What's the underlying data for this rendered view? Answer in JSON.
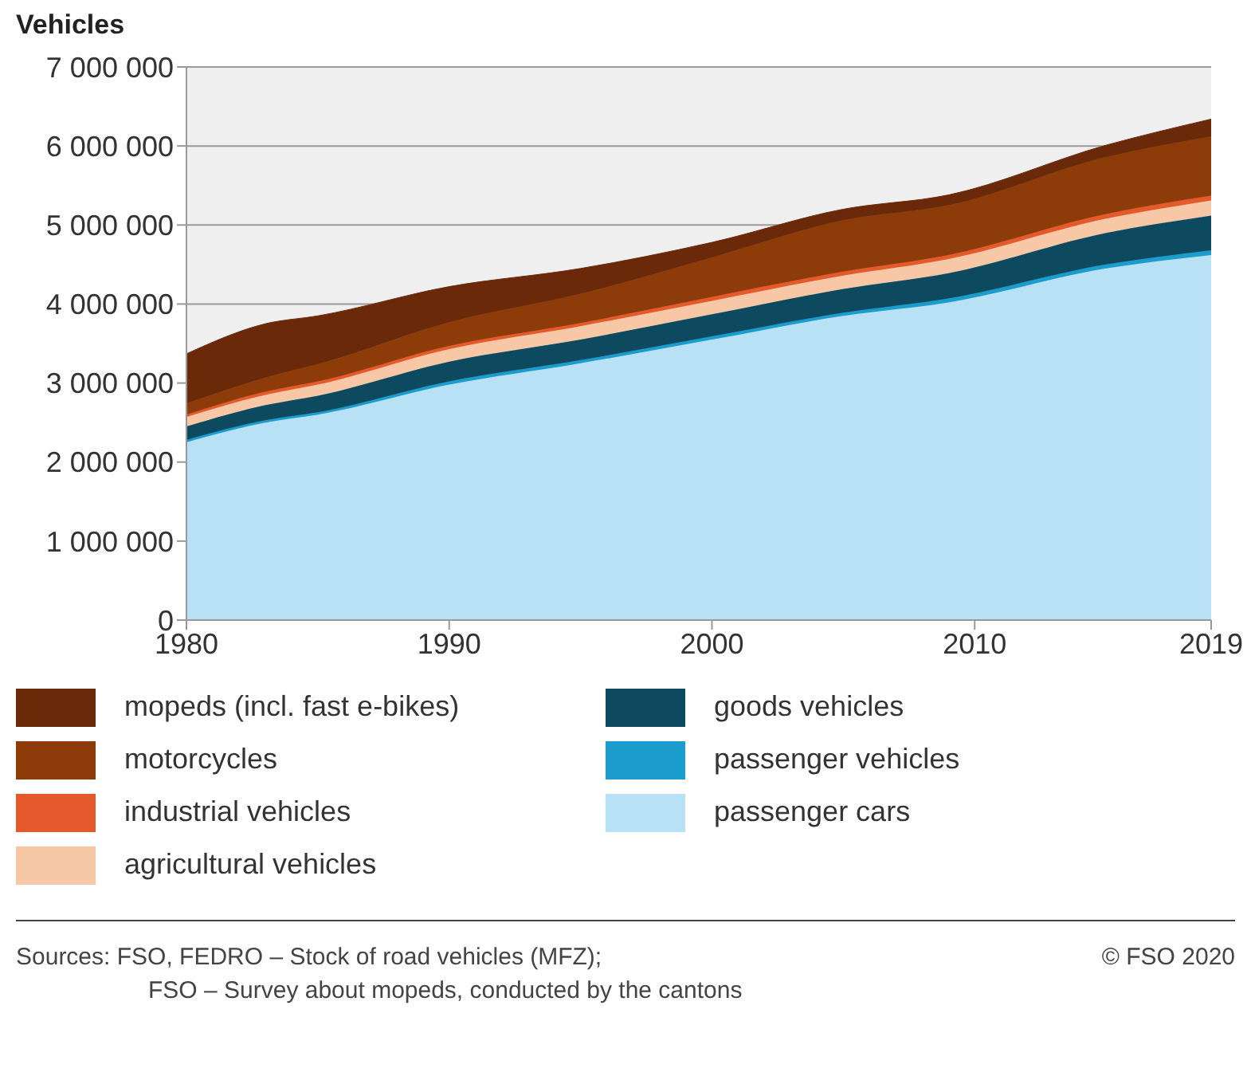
{
  "chart_data": {
    "type": "area",
    "stacked": true,
    "ylabel": "Vehicles",
    "x": [
      1980,
      1983,
      1985,
      1990,
      1995,
      2000,
      2005,
      2009,
      2015,
      2019
    ],
    "series": [
      {
        "name": "passenger cars",
        "color": "#b9e1f6",
        "values": [
          2250000,
          2500000,
          2600000,
          2980000,
          3250000,
          3550000,
          3850000,
          4020000,
          4450000,
          4620000
        ]
      },
      {
        "name": "passenger vehicles",
        "color": "#1a9ccc",
        "values": [
          30000,
          30000,
          30000,
          40000,
          40000,
          40000,
          40000,
          50000,
          50000,
          60000
        ]
      },
      {
        "name": "goods vehicles",
        "color": "#0d4a5f",
        "values": [
          170000,
          190000,
          210000,
          250000,
          260000,
          280000,
          300000,
          320000,
          400000,
          440000
        ]
      },
      {
        "name": "agricultural vehicles",
        "color": "#f8c8a6",
        "values": [
          120000,
          130000,
          140000,
          160000,
          170000,
          170000,
          170000,
          180000,
          180000,
          190000
        ]
      },
      {
        "name": "industrial vehicles",
        "color": "#e45a2c",
        "values": [
          30000,
          40000,
          40000,
          40000,
          40000,
          50000,
          50000,
          50000,
          60000,
          60000
        ]
      },
      {
        "name": "motorcycles",
        "color": "#8e3b0a",
        "values": [
          140000,
          180000,
          220000,
          300000,
          370000,
          500000,
          650000,
          630000,
          720000,
          750000
        ]
      },
      {
        "name": "mopeds (incl. fast e-bikes)",
        "color": "#6a2a0a",
        "values": [
          630000,
          680000,
          610000,
          450000,
          320000,
          190000,
          140000,
          130000,
          150000,
          220000
        ]
      }
    ],
    "xlim": [
      1980,
      2019
    ],
    "xticks": [
      1980,
      1990,
      2000,
      2010,
      2019
    ],
    "ylim": [
      0,
      7000000
    ],
    "yticks": [
      0,
      {
        "value": 1000000,
        "label": "1 000 000"
      },
      {
        "value": 2000000,
        "label": "2 000 000"
      },
      {
        "value": 3000000,
        "label": "3 000 000"
      },
      {
        "value": 4000000,
        "label": "4 000 000"
      },
      {
        "value": 5000000,
        "label": "5 000 000"
      },
      {
        "value": 6000000,
        "label": "6 000 000"
      },
      {
        "value": 7000000,
        "label": "7 000 000"
      }
    ],
    "grid": "y",
    "legend": "bottom",
    "annotations": [
      "Sources: FSO, FEDRO – Stock of road vehicles (MFZ);",
      "FSO – Survey about mopeds, conducted by the cantons",
      "© FSO 2020"
    ]
  }
}
